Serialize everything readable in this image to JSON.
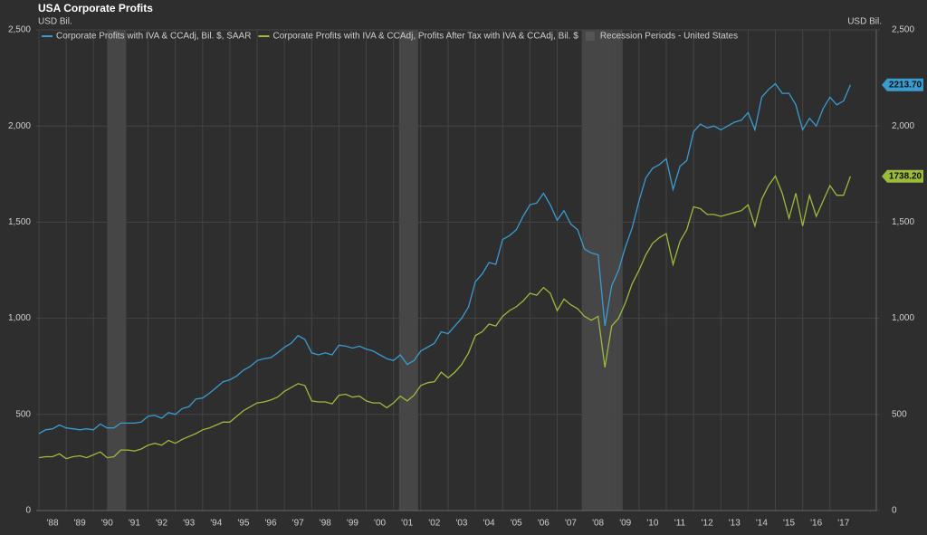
{
  "chart_data": {
    "type": "line",
    "title": "USA Corporate Profits",
    "ylabel": "USD Bil.",
    "y2label": "USD Bil.",
    "x": [
      1988,
      1988.25,
      1988.5,
      1988.75,
      1989,
      1989.25,
      1989.5,
      1989.75,
      1990,
      1990.25,
      1990.5,
      1990.75,
      1991,
      1991.25,
      1991.5,
      1991.75,
      1992,
      1992.25,
      1992.5,
      1992.75,
      1993,
      1993.25,
      1993.5,
      1993.75,
      1994,
      1994.25,
      1994.5,
      1994.75,
      1995,
      1995.25,
      1995.5,
      1995.75,
      1996,
      1996.25,
      1996.5,
      1996.75,
      1997,
      1997.25,
      1997.5,
      1997.75,
      1998,
      1998.25,
      1998.5,
      1998.75,
      1999,
      1999.25,
      1999.5,
      1999.75,
      2000,
      2000.25,
      2000.5,
      2000.75,
      2001,
      2001.25,
      2001.5,
      2001.75,
      2002,
      2002.25,
      2002.5,
      2002.75,
      2003,
      2003.25,
      2003.5,
      2003.75,
      2004,
      2004.25,
      2004.5,
      2004.75,
      2005,
      2005.25,
      2005.5,
      2005.75,
      2006,
      2006.25,
      2006.5,
      2006.75,
      2007,
      2007.25,
      2007.5,
      2007.75,
      2008,
      2008.25,
      2008.5,
      2008.75,
      2009,
      2009.25,
      2009.5,
      2009.75,
      2010,
      2010.25,
      2010.5,
      2010.75,
      2011,
      2011.25,
      2011.5,
      2011.75,
      2012,
      2012.25,
      2012.5,
      2012.75,
      2013,
      2013.25,
      2013.5,
      2013.75,
      2014,
      2014.25,
      2014.5,
      2014.75,
      2015,
      2015.25,
      2015.5,
      2015.75,
      2016,
      2016.25,
      2016.5,
      2016.75,
      2017,
      2017.25,
      2017.5,
      2017.75
    ],
    "series": [
      {
        "name": "Corporate Profits with IVA & CCAdj, Bil. $, SAAR",
        "color": "#3a9bd0",
        "end_label": "2213.70",
        "values": [
          400,
          420,
          425,
          445,
          430,
          425,
          420,
          425,
          420,
          450,
          430,
          430,
          455,
          455,
          455,
          460,
          490,
          495,
          480,
          510,
          500,
          530,
          540,
          580,
          585,
          610,
          640,
          670,
          680,
          700,
          730,
          750,
          780,
          790,
          795,
          820,
          850,
          870,
          910,
          890,
          820,
          810,
          820,
          810,
          860,
          855,
          845,
          855,
          840,
          830,
          810,
          790,
          780,
          810,
          760,
          780,
          830,
          850,
          870,
          930,
          920,
          960,
          1000,
          1060,
          1190,
          1230,
          1290,
          1280,
          1410,
          1430,
          1460,
          1530,
          1590,
          1600,
          1650,
          1590,
          1510,
          1560,
          1490,
          1460,
          1360,
          1340,
          1330,
          960,
          1170,
          1250,
          1370,
          1470,
          1610,
          1730,
          1780,
          1800,
          1830,
          1670,
          1790,
          1820,
          1970,
          2010,
          1990,
          2000,
          1980,
          2000,
          2020,
          2030,
          2070,
          1980,
          2150,
          2190,
          2220,
          2170,
          2170,
          2110,
          1980,
          2040,
          2000,
          2090,
          2150,
          2110,
          2130,
          2213.7
        ]
      },
      {
        "name": "Corporate Profits with IVA & CCAdj, Profits After Tax with IVA & CCAdj, Bil. $",
        "color": "#9cba3c",
        "end_label": "1738.20",
        "values": [
          275,
          280,
          280,
          295,
          270,
          280,
          285,
          275,
          290,
          305,
          275,
          280,
          315,
          315,
          310,
          320,
          340,
          350,
          340,
          365,
          350,
          370,
          385,
          400,
          420,
          430,
          445,
          460,
          460,
          490,
          520,
          540,
          560,
          565,
          575,
          590,
          620,
          640,
          660,
          650,
          570,
          565,
          565,
          555,
          600,
          605,
          590,
          595,
          570,
          560,
          560,
          535,
          560,
          595,
          570,
          600,
          650,
          665,
          670,
          720,
          690,
          720,
          760,
          820,
          910,
          930,
          970,
          960,
          1010,
          1040,
          1060,
          1090,
          1130,
          1120,
          1160,
          1130,
          1040,
          1100,
          1070,
          1050,
          1010,
          990,
          1010,
          745,
          960,
          1000,
          1080,
          1180,
          1250,
          1330,
          1390,
          1420,
          1440,
          1280,
          1400,
          1460,
          1580,
          1570,
          1540,
          1540,
          1530,
          1540,
          1550,
          1560,
          1590,
          1480,
          1620,
          1690,
          1740,
          1650,
          1520,
          1650,
          1480,
          1640,
          1530,
          1610,
          1690,
          1640,
          1640,
          1738.2
        ]
      }
    ],
    "recessions": {
      "name": "Recession Periods - United States",
      "color": "#4a4a4a",
      "periods": [
        [
          1990.5,
          1991.2
        ],
        [
          2001.2,
          2001.9
        ],
        [
          2007.9,
          2009.4
        ]
      ]
    },
    "xlim": [
      1987.9,
      2018.7
    ],
    "xticks": [
      {
        "value": 1988,
        "label": "'88"
      },
      {
        "value": 1989,
        "label": "'89"
      },
      {
        "value": 1990,
        "label": "'90"
      },
      {
        "value": 1991,
        "label": "'91"
      },
      {
        "value": 1992,
        "label": "'92"
      },
      {
        "value": 1993,
        "label": "'93"
      },
      {
        "value": 1994,
        "label": "'94"
      },
      {
        "value": 1995,
        "label": "'95"
      },
      {
        "value": 1996,
        "label": "'96"
      },
      {
        "value": 1997,
        "label": "'97"
      },
      {
        "value": 1998,
        "label": "'98"
      },
      {
        "value": 1999,
        "label": "'99"
      },
      {
        "value": 2000,
        "label": "'00"
      },
      {
        "value": 2001,
        "label": "'01"
      },
      {
        "value": 2002,
        "label": "'02"
      },
      {
        "value": 2003,
        "label": "'03"
      },
      {
        "value": 2004,
        "label": "'04"
      },
      {
        "value": 2005,
        "label": "'05"
      },
      {
        "value": 2006,
        "label": "'06"
      },
      {
        "value": 2007,
        "label": "'07"
      },
      {
        "value": 2008,
        "label": "'08"
      },
      {
        "value": 2009,
        "label": "'09"
      },
      {
        "value": 2010,
        "label": "'10"
      },
      {
        "value": 2011,
        "label": "'11"
      },
      {
        "value": 2012,
        "label": "'12"
      },
      {
        "value": 2013,
        "label": "'13"
      },
      {
        "value": 2014,
        "label": "'14"
      },
      {
        "value": 2015,
        "label": "'15"
      },
      {
        "value": 2016,
        "label": "'16"
      },
      {
        "value": 2017,
        "label": "'17"
      }
    ],
    "ylim": [
      0,
      2500
    ],
    "yticks": [
      0,
      500,
      {
        "value": 1000,
        "label": "1,000"
      },
      {
        "value": 1500,
        "label": "1,500"
      },
      {
        "value": 2000,
        "label": "2,000"
      },
      {
        "value": 2500,
        "label": "2,500"
      }
    ],
    "y2lim": [
      0,
      2500
    ],
    "y2ticks": [
      0,
      500,
      {
        "value": 1000,
        "label": "1,000"
      },
      {
        "value": 1500,
        "label": "1,500"
      },
      {
        "value": 2000,
        "label": "2,000"
      },
      {
        "value": 2500,
        "label": "2,500"
      }
    ],
    "grid": true
  }
}
